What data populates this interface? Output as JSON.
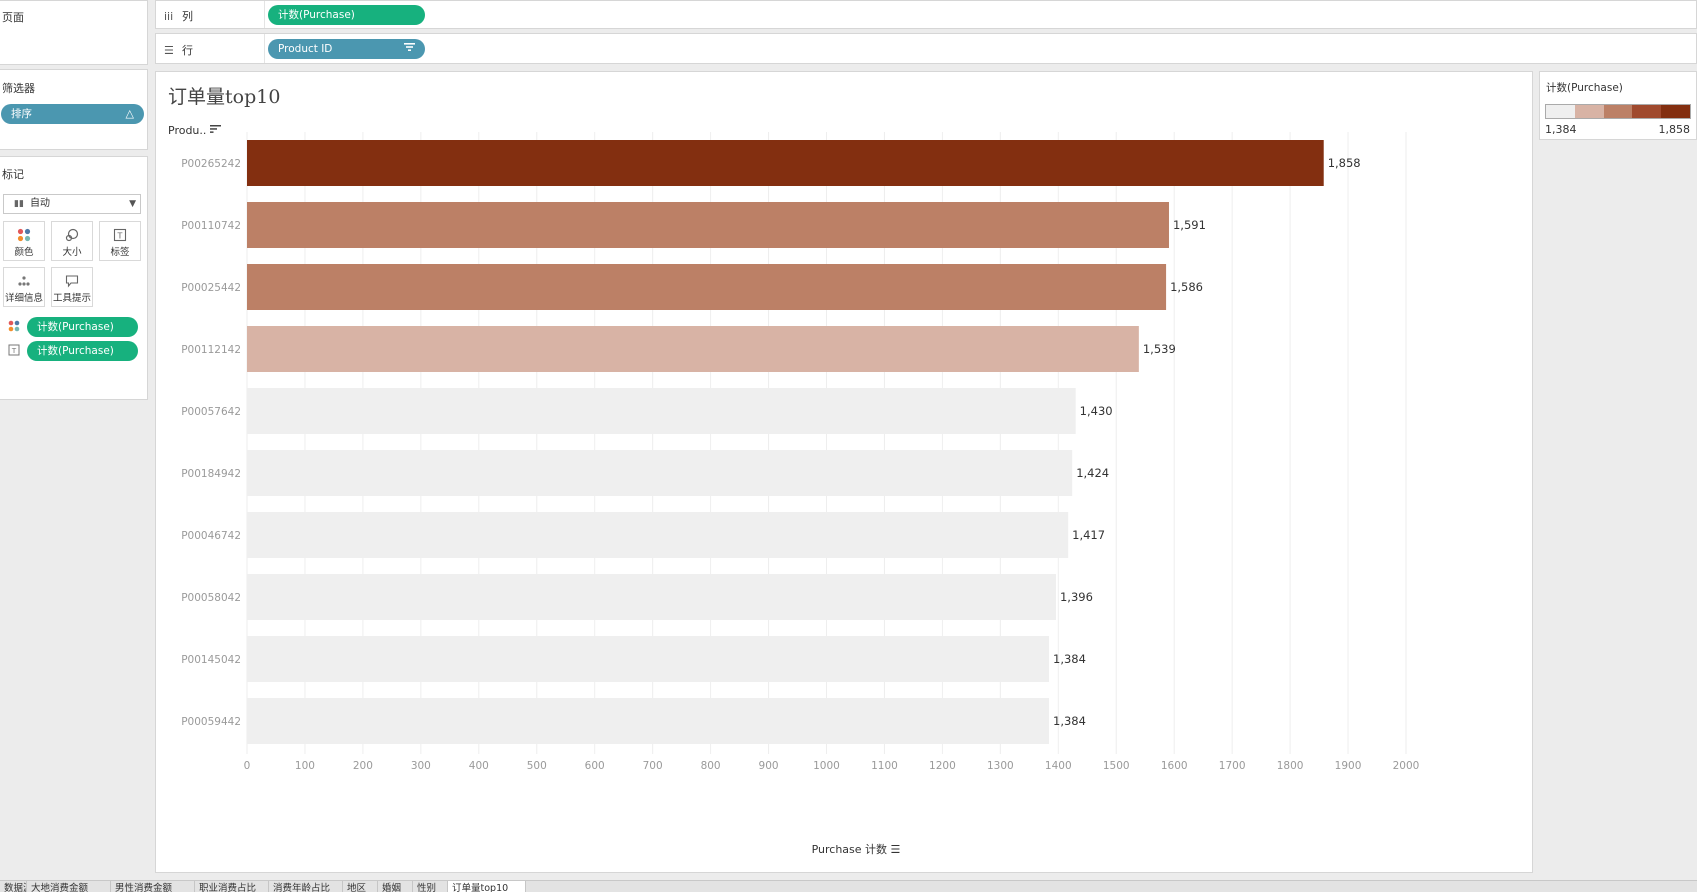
{
  "pages_card": {
    "title": "页面"
  },
  "filters_card": {
    "title": "筛选器",
    "filter_pill": {
      "label": "排序",
      "icon": "delta-icon"
    }
  },
  "marks_card": {
    "title": "标记",
    "mark_type": "自动",
    "buttons": [
      {
        "label": "颜色",
        "icon": "color-dots-icon"
      },
      {
        "label": "大小",
        "icon": "size-icon"
      },
      {
        "label": "标签",
        "icon": "label-icon"
      },
      {
        "label": "详细信息",
        "icon": "detail-icon"
      },
      {
        "label": "工具提示",
        "icon": "tooltip-icon"
      }
    ],
    "encodings": [
      {
        "label": "计数(Purchase)",
        "icon": "color-dots-icon"
      },
      {
        "label": "计数(Purchase)",
        "icon": "label-icon"
      }
    ]
  },
  "columns_shelf": {
    "label": "列",
    "icon": "columns-icon",
    "pill": "计数(Purchase)"
  },
  "rows_shelf": {
    "label": "行",
    "icon": "rows-icon",
    "pill": "Product ID"
  },
  "worksheet": {
    "title": "订单量top10",
    "row_header": "Produ.."
  },
  "legend": {
    "title": "计数(Purchase)",
    "min": "1,384",
    "max": "1,858"
  },
  "colors": {
    "pill_green": "#17b17e",
    "pill_blue": "#4b97b0",
    "ramp": [
      "#efefef",
      "#d8b3a5",
      "#bc8066",
      "#a04a2e",
      "#832f10"
    ]
  },
  "chart_data": {
    "type": "bar",
    "orientation": "horizontal",
    "title": "订单量top10",
    "categories": [
      "P00265242",
      "P00110742",
      "P00025442",
      "P00112142",
      "P00057642",
      "P00184942",
      "P00046742",
      "P00058042",
      "P00145042",
      "P00059442"
    ],
    "values": [
      1858,
      1591,
      1586,
      1539,
      1430,
      1424,
      1417,
      1396,
      1384,
      1384
    ],
    "value_labels": [
      "1,858",
      "1,591",
      "1,586",
      "1,539",
      "1,430",
      "1,424",
      "1,417",
      "1,396",
      "1,384",
      "1,384"
    ],
    "bar_colors": [
      "#832f10",
      "#bc8066",
      "#bc8066",
      "#d8b3a5",
      "#efefef",
      "#efefef",
      "#efefef",
      "#efefef",
      "#efefef",
      "#efefef"
    ],
    "xlabel": "Purchase 计数",
    "ylabel": "Product ID",
    "xlim": [
      0,
      2000
    ],
    "xticks": [
      0,
      100,
      200,
      300,
      400,
      500,
      600,
      700,
      800,
      900,
      1000,
      1100,
      1200,
      1300,
      1400,
      1500,
      1600,
      1700,
      1800,
      1900,
      2000
    ],
    "grid": true
  },
  "sheet_tabs": [
    "数据源",
    "大地消费金额",
    "男性消费金额",
    "职业消费占比",
    "消费年龄占比",
    "地区",
    "婚姻",
    "性别",
    "订单量top10"
  ],
  "active_tab": "订单量top10"
}
